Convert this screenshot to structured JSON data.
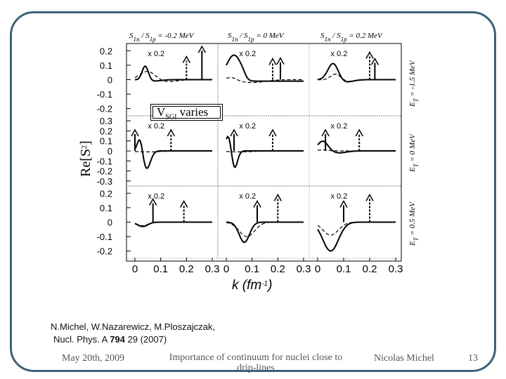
{
  "figure": {
    "ylabel_main": "Re[S",
    "ylabel_sup": "2",
    "ylabel_end": "]",
    "xlabel_main": "k (fm",
    "xlabel_sup": "-1",
    "xlabel_end": ")",
    "column_titles": [
      {
        "pre": "S",
        "sub1": "1n",
        "mid": " / S",
        "sub2": "1p",
        "post": " = -0.2 MeV"
      },
      {
        "pre": "S",
        "sub1": "1n",
        "mid": " / S",
        "sub2": "1p",
        "post": " = 0 MeV"
      },
      {
        "pre": "S",
        "sub1": "1n",
        "mid": " / S",
        "sub2": "1p",
        "post": " = 0.2 MeV"
      }
    ],
    "row_labels": [
      {
        "pre": "E",
        "sub": "T",
        "post": " = -1.5 MeV"
      },
      {
        "pre": "E",
        "sub": "T",
        "post": " = 0 MeV"
      },
      {
        "pre": "E",
        "sub": "T",
        "post": " = 0.5 MeV"
      }
    ],
    "yticks": [
      [
        "0.2",
        "0.1",
        "0",
        "-0.1",
        "-0.2"
      ],
      [
        "0.3",
        "0.2",
        "0.1",
        "0",
        "-0.1",
        "-0.2",
        "-0.3"
      ],
      [
        "0.2",
        "0.1",
        "0",
        "-0.1",
        "-0.2"
      ]
    ],
    "xticks": [
      "0",
      "0.1",
      "0.2",
      "0.3"
    ],
    "panel_note": "x 0.2",
    "varies_main": "V",
    "varies_sub": "SGI",
    "varies_post": " varies"
  },
  "caption": {
    "line1": "N.Michel, W.Nazarewicz, M.Ploszajczak,",
    "line2_pre": "Nucl. Phys. A ",
    "line2_bold": "794",
    "line2_post": " 29 (2007)"
  },
  "footer": {
    "date": "May 20th, 2009",
    "title_line1": "Importance of continuum for nuclei close to",
    "title_line2": "drip-lines",
    "author": "Nicolas Michel",
    "page": "13"
  }
}
